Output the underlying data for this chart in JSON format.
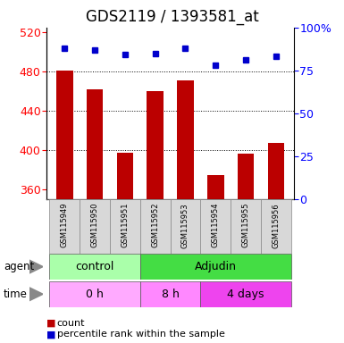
{
  "title": "GDS2119 / 1393581_at",
  "samples": [
    "GSM115949",
    "GSM115950",
    "GSM115951",
    "GSM115952",
    "GSM115953",
    "GSM115954",
    "GSM115955",
    "GSM115956"
  ],
  "counts": [
    481,
    462,
    397,
    460,
    471,
    374,
    396,
    407
  ],
  "percentiles": [
    88,
    87,
    84,
    85,
    88,
    78,
    81,
    83
  ],
  "ylim_left": [
    350,
    525
  ],
  "ylim_right": [
    0,
    100
  ],
  "yticks_left": [
    360,
    400,
    440,
    480,
    520
  ],
  "yticks_right": [
    0,
    25,
    50,
    75,
    100
  ],
  "bar_color": "#bb0000",
  "dot_color": "#0000cc",
  "bar_bottom": 350,
  "agent_groups": [
    {
      "label": "control",
      "start": 0,
      "end": 3,
      "color": "#aaffaa"
    },
    {
      "label": "Adjudin",
      "start": 3,
      "end": 8,
      "color": "#44dd44"
    }
  ],
  "time_groups": [
    {
      "label": "0 h",
      "start": 0,
      "end": 3,
      "color": "#ffaaff"
    },
    {
      "label": "8 h",
      "start": 3,
      "end": 5,
      "color": "#ff88ff"
    },
    {
      "label": "4 days",
      "start": 5,
      "end": 8,
      "color": "#ee44ee"
    }
  ],
  "grid_color": "black",
  "title_fontsize": 12,
  "tick_fontsize": 9,
  "sample_fontsize": 6,
  "row_fontsize": 9
}
